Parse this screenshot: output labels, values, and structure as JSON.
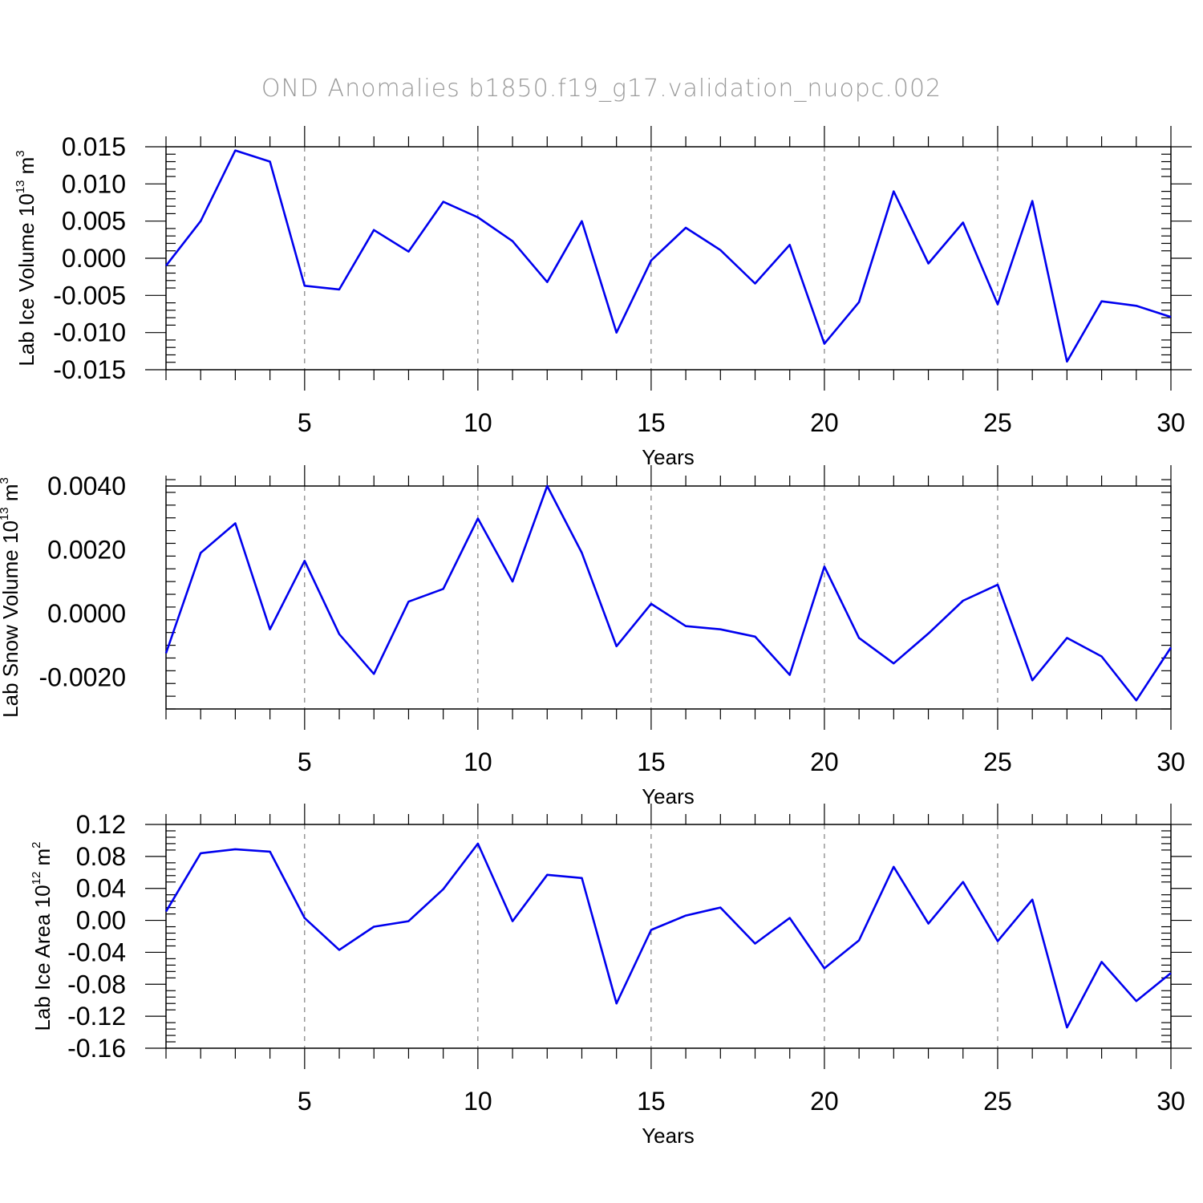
{
  "title": "OND Anomalies b1850.f19_g17.validation_nuopc.002",
  "colors": {
    "line": "#0000ee",
    "axis": "#000000",
    "title": "#9a9a9a",
    "grid": "#666666"
  },
  "chart_data": [
    {
      "type": "line",
      "ylabel": "Lab Ice Volume",
      "ylabel_unit_base": "10",
      "ylabel_unit_exp": "13",
      "ylabel_unit": "m",
      "ylabel_unit_power": "3",
      "xlabel": "Years",
      "xlim": [
        1,
        30
      ],
      "ylim": [
        -0.015,
        0.015
      ],
      "grid_x": [
        5,
        10,
        15,
        20,
        25
      ],
      "xticks": [
        5,
        10,
        15,
        20,
        25,
        30
      ],
      "xtick_labels": [
        "5",
        "10",
        "15",
        "20",
        "25",
        "30"
      ],
      "yticks": [
        -0.015,
        -0.01,
        -0.005,
        0,
        0.005,
        0.01,
        0.015
      ],
      "ytick_labels": [
        "-0.015",
        "-0.010",
        "-0.005",
        "0.000",
        "0.005",
        "0.010",
        "0.015"
      ],
      "x": [
        1,
        2,
        3,
        4,
        5,
        6,
        7,
        8,
        9,
        10,
        11,
        12,
        13,
        14,
        15,
        16,
        17,
        18,
        19,
        20,
        21,
        22,
        23,
        24,
        25,
        26,
        27,
        28,
        29,
        30
      ],
      "values": [
        -0.001,
        0.005,
        0.0145,
        0.013,
        -0.0037,
        -0.0042,
        0.0038,
        0.0009,
        0.0076,
        0.0055,
        0.0023,
        -0.0032,
        0.005,
        -0.01,
        -0.0003,
        0.0041,
        0.0011,
        -0.0034,
        0.0018,
        -0.0115,
        -0.0059,
        0.009,
        -0.0007,
        0.0048,
        -0.0062,
        0.0077,
        -0.0139,
        -0.0058,
        -0.0064,
        -0.0079
      ]
    },
    {
      "type": "line",
      "ylabel": "Lab Snow Volume",
      "ylabel_unit_base": "10",
      "ylabel_unit_exp": "13",
      "ylabel_unit": "m",
      "ylabel_unit_power": "3",
      "xlabel": "Years",
      "xlim": [
        1,
        30
      ],
      "ylim": [
        -0.003,
        0.004
      ],
      "grid_x": [
        5,
        10,
        15,
        20,
        25
      ],
      "xticks": [
        5,
        10,
        15,
        20,
        25,
        30
      ],
      "xtick_labels": [
        "5",
        "10",
        "15",
        "20",
        "25",
        "30"
      ],
      "yticks": [
        -0.002,
        0,
        0.002,
        0.004
      ],
      "ytick_labels": [
        "-0.0020",
        "0.0000",
        "0.0020",
        "0.0040"
      ],
      "x": [
        1,
        2,
        3,
        4,
        5,
        6,
        7,
        8,
        9,
        10,
        11,
        12,
        13,
        14,
        15,
        16,
        17,
        18,
        19,
        20,
        21,
        22,
        23,
        24,
        25,
        26,
        27,
        28,
        29,
        30
      ],
      "values": [
        -0.00125,
        0.0019,
        0.00283,
        -0.0005,
        0.00165,
        -0.00065,
        -0.0019,
        0.00037,
        0.00077,
        0.00298,
        0.001,
        0.004,
        0.0019,
        -0.00103,
        0.0003,
        -0.0004,
        -0.0005,
        -0.00073,
        -0.00193,
        0.00147,
        -0.00077,
        -0.00157,
        -0.00063,
        0.0004,
        0.0009,
        -0.0021,
        -0.00077,
        -0.00135,
        -0.00273,
        -0.00107
      ]
    },
    {
      "type": "line",
      "ylabel": "Lab Ice Area",
      "ylabel_unit_base": "10",
      "ylabel_unit_exp": "12",
      "ylabel_unit": "m",
      "ylabel_unit_power": "2",
      "xlabel": "Years",
      "xlim": [
        1,
        30
      ],
      "ylim": [
        -0.16,
        0.12
      ],
      "grid_x": [
        5,
        10,
        15,
        20,
        25
      ],
      "xticks": [
        5,
        10,
        15,
        20,
        25,
        30
      ],
      "xtick_labels": [
        "5",
        "10",
        "15",
        "20",
        "25",
        "30"
      ],
      "yticks": [
        -0.16,
        -0.12,
        -0.08,
        -0.04,
        0,
        0.04,
        0.08,
        0.12
      ],
      "ytick_labels": [
        "-0.16",
        "-0.12",
        "-0.08",
        "-0.04",
        "0.00",
        "0.04",
        "0.08",
        "0.12"
      ],
      "x": [
        1,
        2,
        3,
        4,
        5,
        6,
        7,
        8,
        9,
        10,
        11,
        12,
        13,
        14,
        15,
        16,
        17,
        18,
        19,
        20,
        21,
        22,
        23,
        24,
        25,
        26,
        27,
        28,
        29,
        30
      ],
      "values": [
        0.011,
        0.084,
        0.089,
        0.086,
        0.003,
        -0.037,
        -0.008,
        -0.001,
        0.039,
        0.096,
        -0.001,
        0.057,
        0.053,
        -0.104,
        -0.012,
        0.006,
        0.016,
        -0.029,
        0.003,
        -0.06,
        -0.025,
        0.067,
        -0.004,
        0.048,
        -0.026,
        0.026,
        -0.134,
        -0.052,
        -0.101,
        -0.066
      ]
    }
  ]
}
